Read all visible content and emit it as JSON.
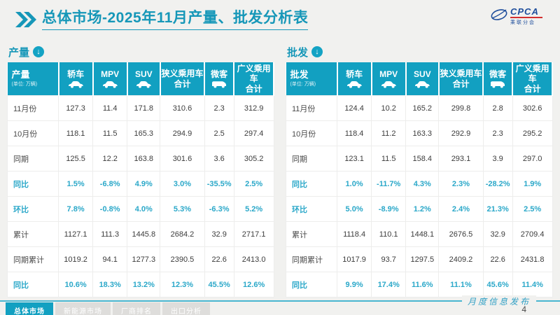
{
  "page": {
    "title": "总体市场-2025年11月产量、批发分析表",
    "page_number": "4",
    "footer_note": "月度信息发布"
  },
  "logo": {
    "name": "CPCA",
    "subtext": "乘联分会"
  },
  "tables": [
    {
      "section_label": "产量",
      "unit": "(单位: 万辆)",
      "columns": [
        {
          "line1": "轿车",
          "line2": "",
          "icon": "car-icon"
        },
        {
          "line1": "MPV",
          "line2": "",
          "icon": "car-icon"
        },
        {
          "line1": "SUV",
          "line2": "",
          "icon": "car-icon"
        },
        {
          "line1": "狭义乘用车",
          "line2": "合计",
          "icon": ""
        },
        {
          "line1": "微客",
          "line2": "",
          "icon": "van-icon"
        },
        {
          "line1": "广义乘用车",
          "line2": "合计",
          "icon": ""
        }
      ],
      "rows": [
        {
          "label": "11月份",
          "highlight": false,
          "values": [
            "127.3",
            "11.4",
            "171.8",
            "310.6",
            "2.3",
            "312.9"
          ]
        },
        {
          "label": "10月份",
          "highlight": false,
          "values": [
            "118.1",
            "11.5",
            "165.3",
            "294.9",
            "2.5",
            "297.4"
          ]
        },
        {
          "label": "同期",
          "highlight": false,
          "values": [
            "125.5",
            "12.2",
            "163.8",
            "301.6",
            "3.6",
            "305.2"
          ]
        },
        {
          "label": "同比",
          "highlight": true,
          "values": [
            "1.5%",
            "-6.8%",
            "4.9%",
            "3.0%",
            "-35.5%",
            "2.5%"
          ]
        },
        {
          "label": "环比",
          "highlight": true,
          "values": [
            "7.8%",
            "-0.8%",
            "4.0%",
            "5.3%",
            "-6.3%",
            "5.2%"
          ]
        },
        {
          "label": "累计",
          "highlight": false,
          "values": [
            "1127.1",
            "111.3",
            "1445.8",
            "2684.2",
            "32.9",
            "2717.1"
          ]
        },
        {
          "label": "同期累计",
          "highlight": false,
          "values": [
            "1019.2",
            "94.1",
            "1277.3",
            "2390.5",
            "22.6",
            "2413.0"
          ]
        },
        {
          "label": "同比",
          "highlight": true,
          "values": [
            "10.6%",
            "18.3%",
            "13.2%",
            "12.3%",
            "45.5%",
            "12.6%"
          ]
        }
      ]
    },
    {
      "section_label": "批发",
      "unit": "(单位: 万辆)",
      "columns": [
        {
          "line1": "轿车",
          "line2": "",
          "icon": "car-icon"
        },
        {
          "line1": "MPV",
          "line2": "",
          "icon": "car-icon"
        },
        {
          "line1": "SUV",
          "line2": "",
          "icon": "car-icon"
        },
        {
          "line1": "狭义乘用车",
          "line2": "合计",
          "icon": ""
        },
        {
          "line1": "微客",
          "line2": "",
          "icon": "van-icon"
        },
        {
          "line1": "广义乘用车",
          "line2": "合计",
          "icon": ""
        }
      ],
      "rows": [
        {
          "label": "11月份",
          "highlight": false,
          "values": [
            "124.4",
            "10.2",
            "165.2",
            "299.8",
            "2.8",
            "302.6"
          ]
        },
        {
          "label": "10月份",
          "highlight": false,
          "values": [
            "118.4",
            "11.2",
            "163.3",
            "292.9",
            "2.3",
            "295.2"
          ]
        },
        {
          "label": "同期",
          "highlight": false,
          "values": [
            "123.1",
            "11.5",
            "158.4",
            "293.1",
            "3.9",
            "297.0"
          ]
        },
        {
          "label": "同比",
          "highlight": true,
          "values": [
            "1.0%",
            "-11.7%",
            "4.3%",
            "2.3%",
            "-28.2%",
            "1.9%"
          ]
        },
        {
          "label": "环比",
          "highlight": true,
          "values": [
            "5.0%",
            "-8.9%",
            "1.2%",
            "2.4%",
            "21.3%",
            "2.5%"
          ]
        },
        {
          "label": "累计",
          "highlight": false,
          "values": [
            "1118.4",
            "110.1",
            "1448.1",
            "2676.5",
            "32.9",
            "2709.4"
          ]
        },
        {
          "label": "同期累计",
          "highlight": false,
          "values": [
            "1017.9",
            "93.7",
            "1297.5",
            "2409.2",
            "22.6",
            "2431.8"
          ]
        },
        {
          "label": "同比",
          "highlight": true,
          "values": [
            "9.9%",
            "17.4%",
            "11.6%",
            "11.1%",
            "45.6%",
            "11.4%"
          ]
        }
      ]
    }
  ],
  "footer_tabs": [
    {
      "label": "总体市场",
      "active": true
    },
    {
      "label": "新能源市场",
      "active": false
    },
    {
      "label": "厂商排名",
      "active": false
    },
    {
      "label": "出口分析",
      "active": false
    }
  ],
  "colors": {
    "teal": "#1697b8",
    "teal_header": "#12a0c1",
    "teal_text": "#2ba8c9",
    "logo_blue": "#1f4e9c"
  }
}
